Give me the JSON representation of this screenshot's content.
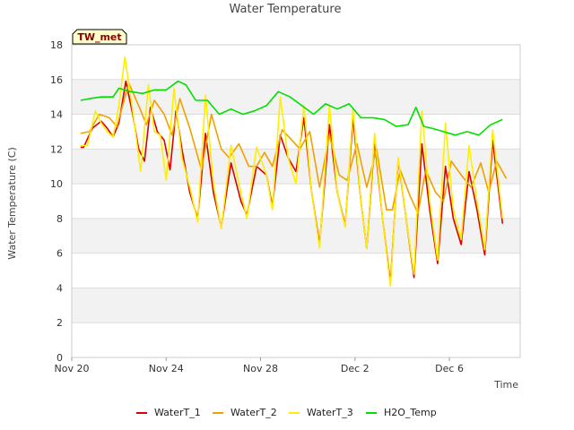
{
  "chart_data": {
    "type": "line",
    "title": "Water Temperature",
    "xlabel": "Time",
    "ylabel": "Water Temperature (C)",
    "ylim": [
      0,
      18
    ],
    "xlim": [
      "2023-11-20",
      "2023-12-09"
    ],
    "yticks": [
      0,
      2,
      4,
      6,
      8,
      10,
      12,
      14,
      16,
      18
    ],
    "xticks": [
      {
        "date": "2023-11-20",
        "label": "Nov 20"
      },
      {
        "date": "2023-11-24",
        "label": "Nov 24"
      },
      {
        "date": "2023-11-28",
        "label": "Nov 28"
      },
      {
        "date": "2023-12-02",
        "label": "Dec 2"
      },
      {
        "date": "2023-12-06",
        "label": "Dec 6"
      }
    ],
    "grid": "horizontal bands",
    "legend_position": "bottom",
    "station_badge": "TW_met",
    "series": [
      {
        "name": "WaterT_1",
        "color": "#dd0000",
        "points": [
          [
            "2023-11-20T09:00",
            12.1
          ],
          [
            "2023-11-20T12:00",
            12.1
          ],
          [
            "2023-11-20T21:00",
            13.2
          ],
          [
            "2023-11-21T06:00",
            13.6
          ],
          [
            "2023-11-21T12:00",
            13.2
          ],
          [
            "2023-11-21T18:00",
            12.7
          ],
          [
            "2023-11-22T00:00",
            13.5
          ],
          [
            "2023-11-22T07:00",
            15.9
          ],
          [
            "2023-11-22T14:00",
            14.0
          ],
          [
            "2023-11-22T20:00",
            12.0
          ],
          [
            "2023-11-23T02:00",
            11.3
          ],
          [
            "2023-11-23T08:00",
            14.4
          ],
          [
            "2023-11-23T15:00",
            13.0
          ],
          [
            "2023-11-23T22:00",
            12.5
          ],
          [
            "2023-11-24T04:00",
            10.8
          ],
          [
            "2023-11-24T10:00",
            14.2
          ],
          [
            "2023-11-24T16:00",
            12.0
          ],
          [
            "2023-11-25T00:00",
            9.5
          ],
          [
            "2023-11-25T08:00",
            8.0
          ],
          [
            "2023-11-25T16:00",
            12.9
          ],
          [
            "2023-11-26T00:00",
            9.5
          ],
          [
            "2023-11-26T08:00",
            7.5
          ],
          [
            "2023-11-26T18:00",
            11.2
          ],
          [
            "2023-11-27T04:00",
            9.0
          ],
          [
            "2023-11-27T10:00",
            8.2
          ],
          [
            "2023-11-27T20:00",
            11.0
          ],
          [
            "2023-11-28T06:00",
            10.5
          ],
          [
            "2023-11-28T12:00",
            8.7
          ],
          [
            "2023-11-28T20:00",
            12.8
          ],
          [
            "2023-11-29T04:00",
            11.5
          ],
          [
            "2023-11-29T12:00",
            10.7
          ],
          [
            "2023-11-29T20:00",
            13.8
          ],
          [
            "2023-11-30T04:00",
            9.5
          ],
          [
            "2023-11-30T12:00",
            6.5
          ],
          [
            "2023-11-30T22:00",
            13.4
          ],
          [
            "2023-12-01T06:00",
            9.5
          ],
          [
            "2023-12-01T14:00",
            7.6
          ],
          [
            "2023-12-01T22:00",
            13.8
          ],
          [
            "2023-12-02T06:00",
            9.0
          ],
          [
            "2023-12-02T12:00",
            6.3
          ],
          [
            "2023-12-02T20:00",
            12.5
          ],
          [
            "2023-12-03T04:00",
            8.0
          ],
          [
            "2023-12-03T12:00",
            4.3
          ],
          [
            "2023-12-03T20:00",
            11.4
          ],
          [
            "2023-12-04T04:00",
            8.0
          ],
          [
            "2023-12-04T12:00",
            4.6
          ],
          [
            "2023-12-04T20:00",
            12.3
          ],
          [
            "2023-12-05T04:00",
            8.5
          ],
          [
            "2023-12-05T12:00",
            5.4
          ],
          [
            "2023-12-05T20:00",
            11.0
          ],
          [
            "2023-12-06T04:00",
            8.0
          ],
          [
            "2023-12-06T12:00",
            6.5
          ],
          [
            "2023-12-06T20:00",
            10.7
          ],
          [
            "2023-12-07T04:00",
            8.5
          ],
          [
            "2023-12-07T12:00",
            5.9
          ],
          [
            "2023-12-07T20:00",
            12.5
          ],
          [
            "2023-12-08T06:00",
            7.7
          ]
        ]
      },
      {
        "name": "WaterT_2",
        "color": "#f0a000",
        "points": [
          [
            "2023-11-20T09:00",
            12.9
          ],
          [
            "2023-11-20T18:00",
            13.0
          ],
          [
            "2023-11-21T04:00",
            14.0
          ],
          [
            "2023-11-21T14:00",
            13.8
          ],
          [
            "2023-11-21T22:00",
            13.3
          ],
          [
            "2023-11-22T10:00",
            15.8
          ],
          [
            "2023-11-22T20:00",
            14.5
          ],
          [
            "2023-11-23T04:00",
            13.4
          ],
          [
            "2023-11-23T12:00",
            14.8
          ],
          [
            "2023-11-23T22:00",
            14.0
          ],
          [
            "2023-11-24T06:00",
            12.8
          ],
          [
            "2023-11-24T14:00",
            14.9
          ],
          [
            "2023-11-25T00:00",
            13.2
          ],
          [
            "2023-11-25T12:00",
            10.8
          ],
          [
            "2023-11-25T22:00",
            14.0
          ],
          [
            "2023-11-26T08:00",
            12.0
          ],
          [
            "2023-11-26T16:00",
            11.5
          ],
          [
            "2023-11-27T02:00",
            12.3
          ],
          [
            "2023-11-27T12:00",
            11.0
          ],
          [
            "2023-11-27T20:00",
            11.0
          ],
          [
            "2023-11-28T04:00",
            11.8
          ],
          [
            "2023-11-28T12:00",
            11.0
          ],
          [
            "2023-11-28T22:00",
            13.1
          ],
          [
            "2023-11-29T08:00",
            12.5
          ],
          [
            "2023-11-29T16:00",
            12.0
          ],
          [
            "2023-11-30T02:00",
            13.0
          ],
          [
            "2023-11-30T12:00",
            9.8
          ],
          [
            "2023-11-30T22:00",
            12.8
          ],
          [
            "2023-12-01T08:00",
            10.5
          ],
          [
            "2023-12-01T16:00",
            10.2
          ],
          [
            "2023-12-02T02:00",
            12.3
          ],
          [
            "2023-12-02T12:00",
            9.8
          ],
          [
            "2023-12-02T22:00",
            12.0
          ],
          [
            "2023-12-03T08:00",
            8.5
          ],
          [
            "2023-12-03T14:00",
            8.5
          ],
          [
            "2023-12-03T22:00",
            10.8
          ],
          [
            "2023-12-04T08:00",
            9.3
          ],
          [
            "2023-12-04T16:00",
            8.3
          ],
          [
            "2023-12-05T00:00",
            10.8
          ],
          [
            "2023-12-05T10:00",
            9.5
          ],
          [
            "2023-12-05T18:00",
            9.0
          ],
          [
            "2023-12-06T02:00",
            11.3
          ],
          [
            "2023-12-06T12:00",
            10.5
          ],
          [
            "2023-12-06T22:00",
            9.8
          ],
          [
            "2023-12-07T08:00",
            11.2
          ],
          [
            "2023-12-07T16:00",
            9.5
          ],
          [
            "2023-12-08T00:00",
            11.3
          ],
          [
            "2023-12-08T10:00",
            10.3
          ]
        ]
      },
      {
        "name": "WaterT_3",
        "color": "#ffee00",
        "points": [
          [
            "2023-11-20T09:00",
            12.2
          ],
          [
            "2023-11-20T16:00",
            12.2
          ],
          [
            "2023-11-21T00:00",
            14.2
          ],
          [
            "2023-11-21T06:00",
            13.5
          ],
          [
            "2023-11-21T12:00",
            13.0
          ],
          [
            "2023-11-21T18:00",
            12.7
          ],
          [
            "2023-11-22T00:00",
            14.5
          ],
          [
            "2023-11-22T06:00",
            17.3
          ],
          [
            "2023-11-22T14:00",
            14.2
          ],
          [
            "2023-11-22T22:00",
            10.7
          ],
          [
            "2023-11-23T06:00",
            15.7
          ],
          [
            "2023-11-23T12:00",
            13.0
          ],
          [
            "2023-11-23T18:00",
            12.8
          ],
          [
            "2023-11-24T00:00",
            10.2
          ],
          [
            "2023-11-24T08:00",
            15.5
          ],
          [
            "2023-11-24T16:00",
            11.5
          ],
          [
            "2023-11-25T00:00",
            9.8
          ],
          [
            "2023-11-25T08:00",
            7.8
          ],
          [
            "2023-11-25T16:00",
            15.1
          ],
          [
            "2023-11-26T00:00",
            10.0
          ],
          [
            "2023-11-26T08:00",
            7.4
          ],
          [
            "2023-11-26T18:00",
            12.2
          ],
          [
            "2023-11-27T04:00",
            9.5
          ],
          [
            "2023-11-27T10:00",
            8.0
          ],
          [
            "2023-11-27T20:00",
            12.1
          ],
          [
            "2023-11-28T06:00",
            10.5
          ],
          [
            "2023-11-28T12:00",
            8.5
          ],
          [
            "2023-11-28T20:00",
            15.0
          ],
          [
            "2023-11-29T04:00",
            11.5
          ],
          [
            "2023-11-29T12:00",
            10.0
          ],
          [
            "2023-11-29T20:00",
            14.5
          ],
          [
            "2023-11-30T04:00",
            9.5
          ],
          [
            "2023-11-30T12:00",
            6.3
          ],
          [
            "2023-11-30T22:00",
            14.5
          ],
          [
            "2023-12-01T06:00",
            9.5
          ],
          [
            "2023-12-01T14:00",
            7.5
          ],
          [
            "2023-12-01T22:00",
            14.3
          ],
          [
            "2023-12-02T06:00",
            9.0
          ],
          [
            "2023-12-02T12:00",
            6.3
          ],
          [
            "2023-12-02T20:00",
            12.9
          ],
          [
            "2023-12-03T04:00",
            8.0
          ],
          [
            "2023-12-03T12:00",
            4.1
          ],
          [
            "2023-12-03T20:00",
            11.5
          ],
          [
            "2023-12-04T04:00",
            8.0
          ],
          [
            "2023-12-04T12:00",
            4.8
          ],
          [
            "2023-12-04T20:00",
            14.2
          ],
          [
            "2023-12-05T04:00",
            9.0
          ],
          [
            "2023-12-05T12:00",
            5.6
          ],
          [
            "2023-12-05T20:00",
            13.5
          ],
          [
            "2023-12-06T04:00",
            8.5
          ],
          [
            "2023-12-06T12:00",
            6.8
          ],
          [
            "2023-12-06T20:00",
            12.2
          ],
          [
            "2023-12-07T04:00",
            9.0
          ],
          [
            "2023-12-07T12:00",
            6.2
          ],
          [
            "2023-12-07T20:00",
            13.1
          ],
          [
            "2023-12-08T06:00",
            8.0
          ]
        ]
      },
      {
        "name": "H2O_Temp",
        "color": "#00e000",
        "points": [
          [
            "2023-11-20T09:00",
            14.8
          ],
          [
            "2023-11-20T18:00",
            14.9
          ],
          [
            "2023-11-21T06:00",
            15.0
          ],
          [
            "2023-11-21T18:00",
            15.0
          ],
          [
            "2023-11-22T00:00",
            15.5
          ],
          [
            "2023-11-22T12:00",
            15.3
          ],
          [
            "2023-11-23T00:00",
            15.2
          ],
          [
            "2023-11-23T12:00",
            15.4
          ],
          [
            "2023-11-24T00:00",
            15.4
          ],
          [
            "2023-11-24T12:00",
            15.9
          ],
          [
            "2023-11-24T20:00",
            15.7
          ],
          [
            "2023-11-25T06:00",
            14.8
          ],
          [
            "2023-11-25T18:00",
            14.8
          ],
          [
            "2023-11-26T06:00",
            14.0
          ],
          [
            "2023-11-26T18:00",
            14.3
          ],
          [
            "2023-11-27T06:00",
            14.0
          ],
          [
            "2023-11-27T18:00",
            14.2
          ],
          [
            "2023-11-28T06:00",
            14.5
          ],
          [
            "2023-11-28T18:00",
            15.3
          ],
          [
            "2023-11-29T06:00",
            15.0
          ],
          [
            "2023-11-29T18:00",
            14.5
          ],
          [
            "2023-11-30T06:00",
            14.0
          ],
          [
            "2023-11-30T18:00",
            14.6
          ],
          [
            "2023-12-01T06:00",
            14.3
          ],
          [
            "2023-12-01T18:00",
            14.6
          ],
          [
            "2023-12-02T06:00",
            13.8
          ],
          [
            "2023-12-02T18:00",
            13.8
          ],
          [
            "2023-12-03T06:00",
            13.7
          ],
          [
            "2023-12-03T18:00",
            13.3
          ],
          [
            "2023-12-04T06:00",
            13.4
          ],
          [
            "2023-12-04T14:00",
            14.4
          ],
          [
            "2023-12-04T22:00",
            13.3
          ],
          [
            "2023-12-05T06:00",
            13.2
          ],
          [
            "2023-12-05T18:00",
            13.0
          ],
          [
            "2023-12-06T06:00",
            12.8
          ],
          [
            "2023-12-06T18:00",
            13.0
          ],
          [
            "2023-12-07T06:00",
            12.8
          ],
          [
            "2023-12-07T18:00",
            13.4
          ],
          [
            "2023-12-08T06:00",
            13.7
          ]
        ]
      }
    ]
  }
}
